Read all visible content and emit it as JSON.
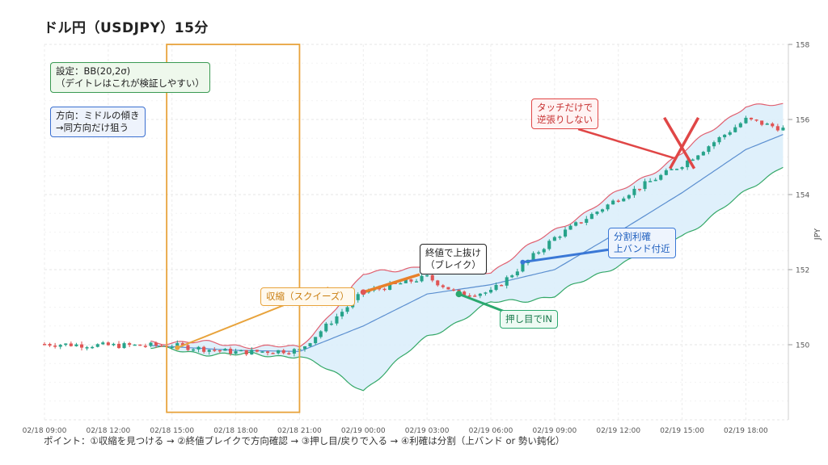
{
  "title": "ドル円（USDJPY）15分",
  "footnote": "ポイント：①収縮を見つける → ②終値ブレイクで方向確認 → ③押し目/戻りで入る → ④利確は分割（上バンド or 勢い鈍化）",
  "annotations": {
    "settings": "設定：BB(20,2σ)\n（デイトレはこれが検証しやすい）",
    "direction": "方向：ミドルの傾き\n→同方向だけ狙う",
    "squeeze": "収縮（スクイーズ）",
    "breakout": "終値で上抜け\n（ブレイク）",
    "pullback": "押し目でIN",
    "take_profit": "分割利確\n上バンド付近",
    "no_fade": "タッチだけで\n逆張りしない"
  },
  "colors": {
    "squeeze": "#e8a33c",
    "breakout": "#e8802a",
    "pullback": "#2aa86e",
    "take_profit": "#3a78d6",
    "no_fade": "#e04646",
    "up_candle": "#27a38a",
    "down_candle": "#e05555",
    "upper_band": "#e06070",
    "middle_band": "#5b8fd0",
    "lower_band": "#34a868",
    "band_fill": "#dceefb"
  },
  "chart_data": {
    "type": "candlestick",
    "title": "ドル円（USDJPY）15分",
    "ylabel": "JPY",
    "ylim": [
      148,
      158
    ],
    "y_ticks": [
      "150",
      "152",
      "154",
      "156",
      "158"
    ],
    "x_ticks": [
      "02/18 09:00",
      "02/18 12:00",
      "02/18 15:00",
      "02/18 18:00",
      "02/18 21:00",
      "02/19 00:00",
      "02/19 03:00",
      "02/19 06:00",
      "02/19 09:00",
      "02/19 12:00",
      "02/19 15:00",
      "02/19 18:00"
    ],
    "bar_interval_minutes": 15,
    "grid": true,
    "indicator": "Bollinger Bands (20, 2σ)",
    "close_path": [
      {
        "time": "02/18 09:00",
        "close": 150.02
      },
      {
        "time": "02/18 12:00",
        "close": 149.98
      },
      {
        "time": "02/18 15:00",
        "close": 149.98
      },
      {
        "time": "02/18 18:00",
        "close": 149.8
      },
      {
        "time": "02/18 21:00",
        "close": 149.85
      },
      {
        "time": "02/19 00:00",
        "close": 151.4
      },
      {
        "time": "02/19 03:00",
        "close": 151.8
      },
      {
        "time": "02/19 04:30",
        "close": 151.35
      },
      {
        "time": "02/19 06:00",
        "close": 151.4
      },
      {
        "time": "02/19 09:00",
        "close": 152.85
      },
      {
        "time": "02/19 12:00",
        "close": 153.9
      },
      {
        "time": "02/19 15:00",
        "close": 154.8
      },
      {
        "time": "02/19 18:00",
        "close": 156.0
      },
      {
        "time": "02/19 19:45",
        "close": 155.75
      }
    ],
    "upper_band": [
      {
        "time": "02/18 14:00",
        "close": 150.1
      },
      {
        "time": "02/18 18:00",
        "close": 150.0
      },
      {
        "time": "02/18 21:00",
        "close": 149.9
      },
      {
        "time": "02/19 00:00",
        "close": 151.85
      },
      {
        "time": "02/19 03:00",
        "close": 152.15
      },
      {
        "time": "02/19 06:00",
        "close": 151.95
      },
      {
        "time": "02/19 09:00",
        "close": 153.05
      },
      {
        "time": "02/19 12:00",
        "close": 154.05
      },
      {
        "time": "02/19 15:00",
        "close": 155.1
      },
      {
        "time": "02/19 18:00",
        "close": 156.4
      },
      {
        "time": "02/19 19:45",
        "close": 156.35
      }
    ],
    "middle_band": [
      {
        "time": "02/18 14:00",
        "close": 149.98
      },
      {
        "time": "02/18 18:00",
        "close": 149.85
      },
      {
        "time": "02/18 21:00",
        "close": 149.82
      },
      {
        "time": "02/19 00:00",
        "close": 150.5
      },
      {
        "time": "02/19 03:00",
        "close": 151.35
      },
      {
        "time": "02/19 06:00",
        "close": 151.6
      },
      {
        "time": "02/19 09:00",
        "close": 152.0
      },
      {
        "time": "02/19 12:00",
        "close": 153.0
      },
      {
        "time": "02/19 15:00",
        "close": 154.05
      },
      {
        "time": "02/19 18:00",
        "close": 155.2
      },
      {
        "time": "02/19 19:45",
        "close": 155.6
      }
    ],
    "lower_band": [
      {
        "time": "02/18 14:00",
        "close": 149.9
      },
      {
        "time": "02/18 18:00",
        "close": 149.72
      },
      {
        "time": "02/18 21:00",
        "close": 149.72
      },
      {
        "time": "02/19 00:00",
        "close": 148.8
      },
      {
        "time": "02/19 03:00",
        "close": 150.2
      },
      {
        "time": "02/19 06:00",
        "close": 151.1
      },
      {
        "time": "02/19 09:00",
        "close": 151.3
      },
      {
        "time": "02/19 12:00",
        "close": 152.15
      },
      {
        "time": "02/19 15:00",
        "close": 152.9
      },
      {
        "time": "02/19 18:00",
        "close": 154.05
      },
      {
        "time": "02/19 19:45",
        "close": 154.8
      }
    ],
    "squeeze_range": {
      "start": "02/18 14:45",
      "end": "02/18 21:00",
      "low": 148.2,
      "high": 158.0
    },
    "annotations": [
      {
        "label": "収縮（スクイーズ）",
        "at_time": "02/18 15:15",
        "at_price": 149.92
      },
      {
        "label": "終値で上抜け（ブレイク）",
        "at_time": "02/19 00:00",
        "at_price": 151.4
      },
      {
        "label": "押し目でIN",
        "at_time": "02/19 04:30",
        "at_price": 151.35
      },
      {
        "label": "分割利確 上バンド付近",
        "at_time": "02/19 07:30",
        "at_price": 152.2
      },
      {
        "label": "タッチだけで逆張りしない",
        "at_time": "02/19 15:00",
        "at_price": 154.8
      }
    ]
  }
}
